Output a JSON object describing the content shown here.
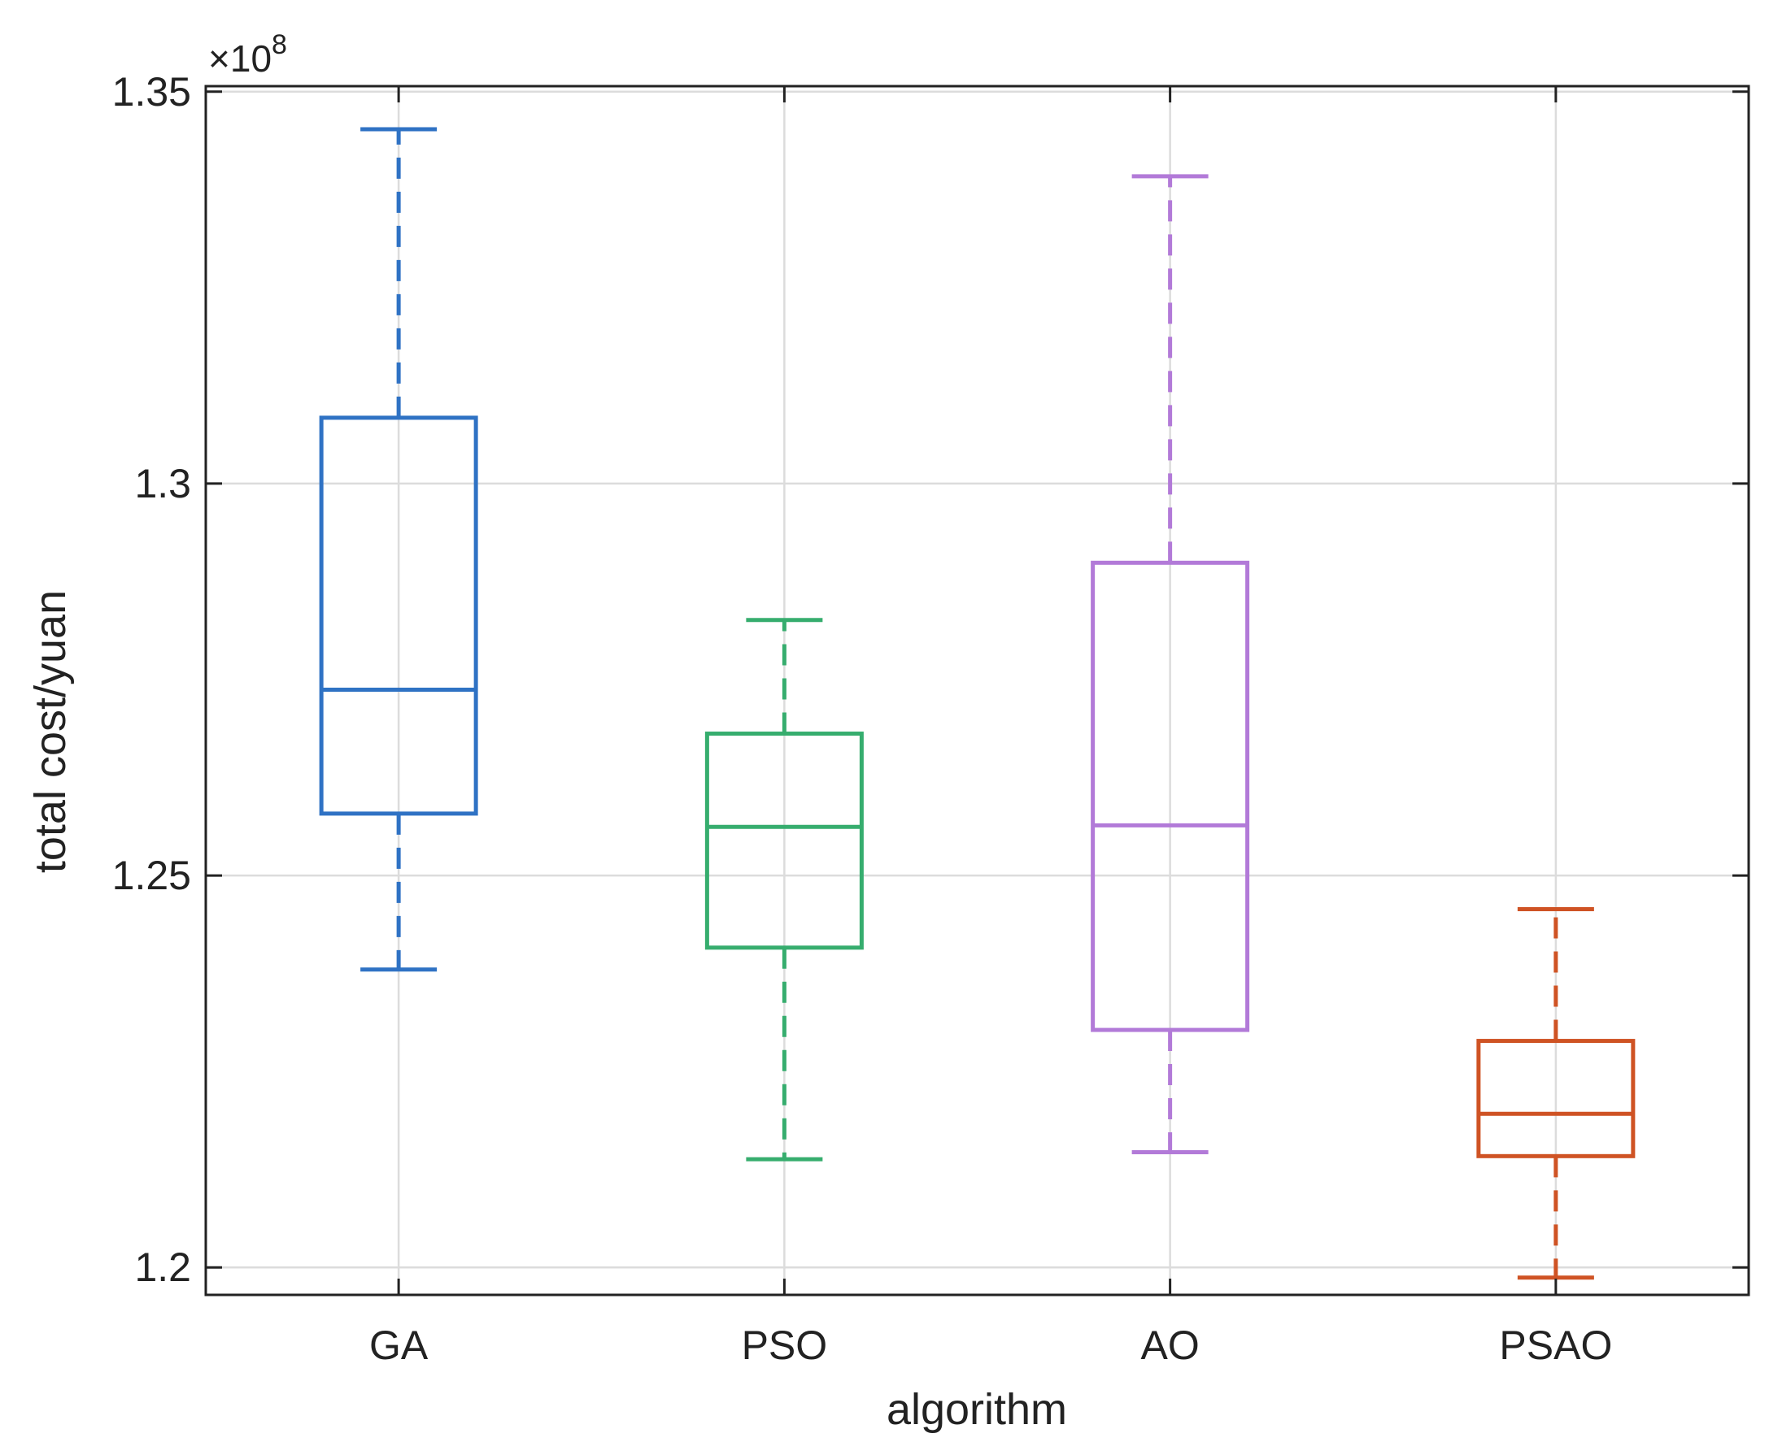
{
  "chart_data": {
    "type": "boxplot",
    "title": "",
    "xlabel": "algorithm",
    "ylabel": "total cost/yuan",
    "y_exponent_label": "×10",
    "y_exponent_power": "8",
    "ylim": [
      1.1965,
      1.3507
    ],
    "yticks": [
      1.2,
      1.25,
      1.3,
      1.35
    ],
    "ytick_labels": [
      "1.2",
      "1.25",
      "1.3",
      "1.35"
    ],
    "grid": true,
    "categories": [
      "GA",
      "PSO",
      "AO",
      "PSAO"
    ],
    "series": [
      {
        "name": "GA",
        "color": "#2f72c4",
        "whisker_low": 1.238,
        "q1": 1.2579,
        "median": 1.2737,
        "q3": 1.3084,
        "whisker_high": 1.3452
      },
      {
        "name": "PSO",
        "color": "#36ad6e",
        "whisker_low": 1.2138,
        "q1": 1.2408,
        "median": 1.2562,
        "q3": 1.2681,
        "whisker_high": 1.2826
      },
      {
        "name": "AO",
        "color": "#b27ad8",
        "whisker_low": 1.2147,
        "q1": 1.2303,
        "median": 1.2564,
        "q3": 1.2899,
        "whisker_high": 1.3392
      },
      {
        "name": "PSAO",
        "color": "#cf5324",
        "whisker_low": 1.1987,
        "q1": 1.2142,
        "median": 1.2196,
        "q3": 1.2289,
        "whisker_high": 1.2457
      }
    ]
  }
}
